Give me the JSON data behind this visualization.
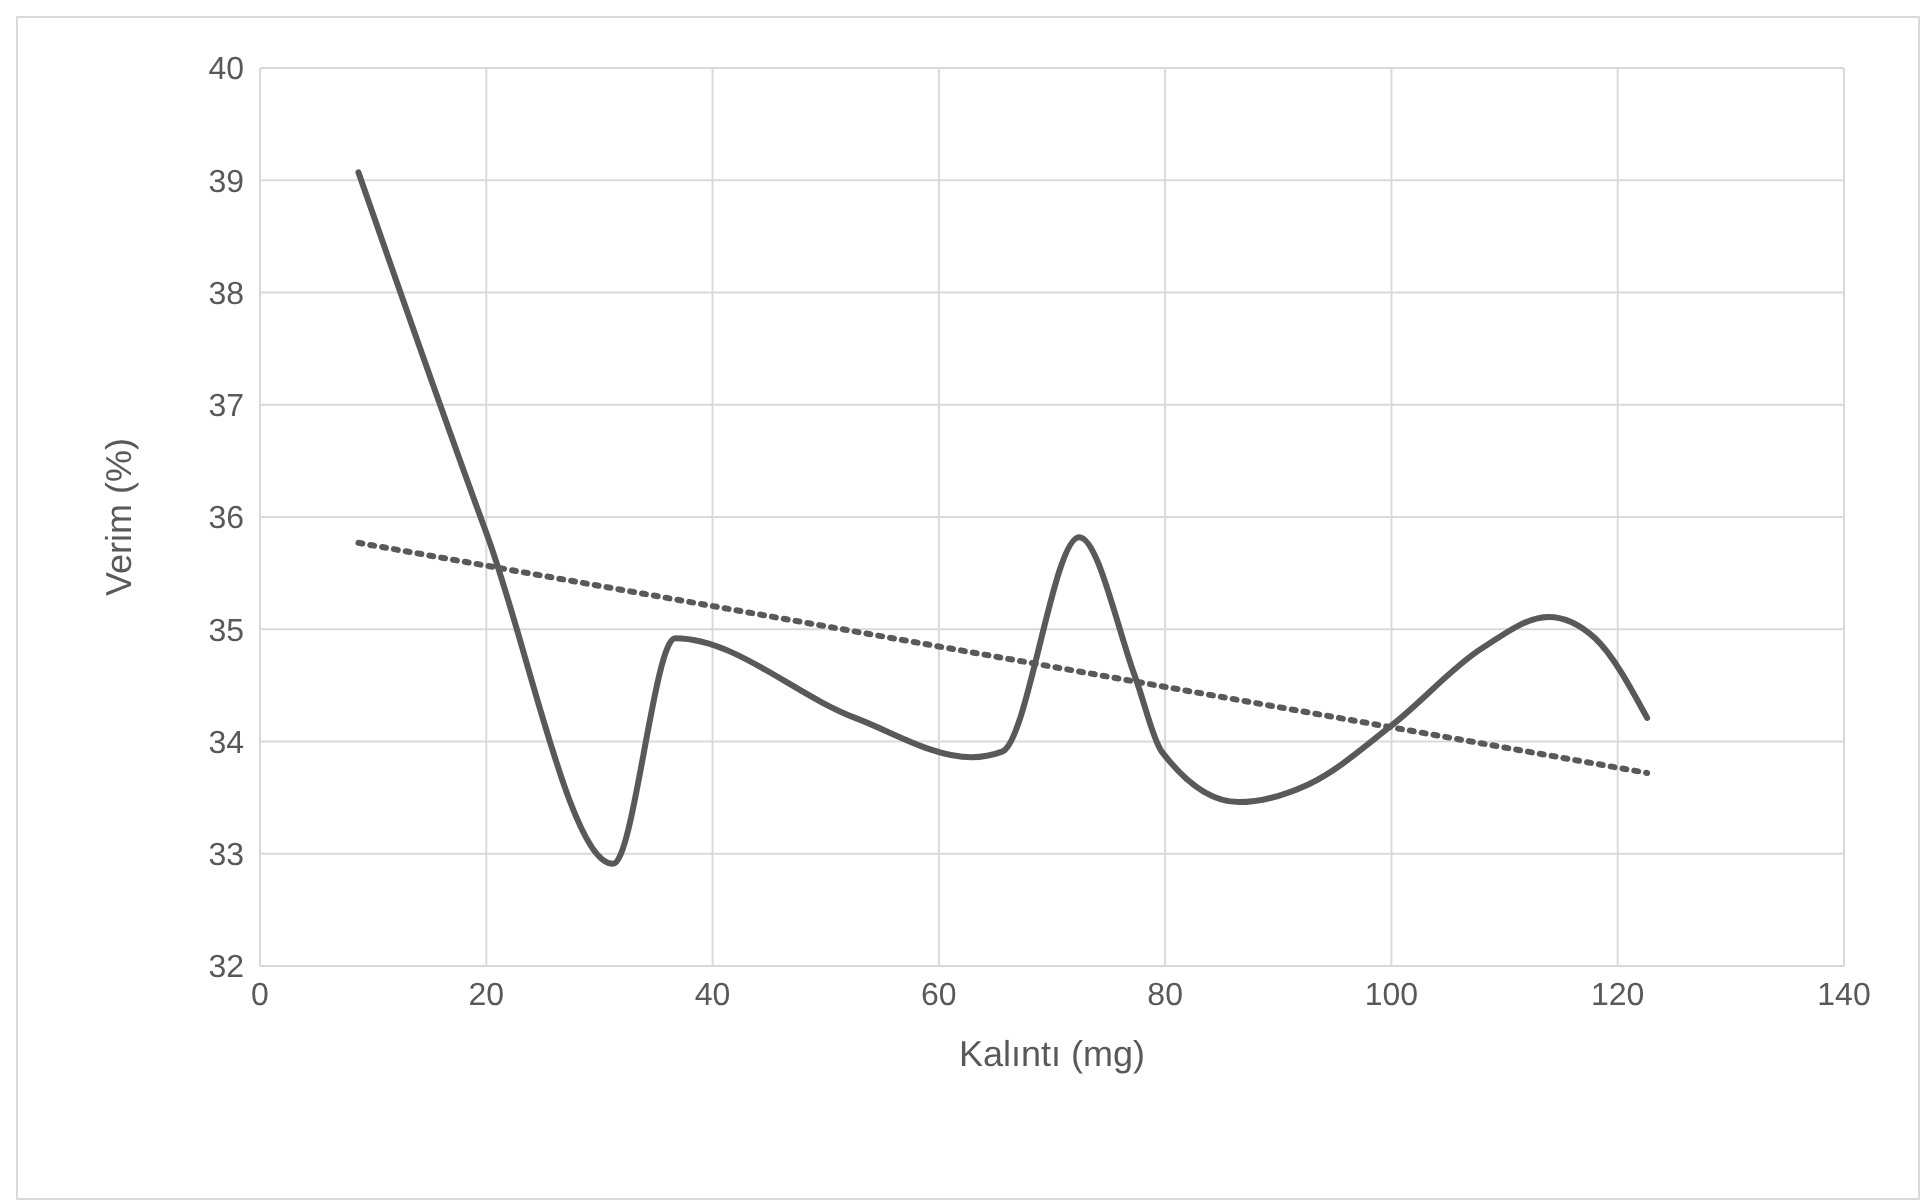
{
  "chart_data": {
    "type": "line",
    "xlabel": "Kalıntı (mg)",
    "ylabel": "Verim (%)",
    "xlim": [
      0,
      140
    ],
    "xticks": [
      0,
      20,
      40,
      60,
      80,
      100,
      120,
      140
    ],
    "ylim": [
      32,
      40
    ],
    "yticks": [
      32,
      33,
      34,
      35,
      36,
      37,
      38,
      39,
      40
    ],
    "grid": true,
    "legend": false,
    "marker": "none",
    "series": [
      {
        "color": "#595959",
        "line_style": "solid",
        "x": [
          8.7,
          20,
          31.2,
          36.7,
          52.6,
          62.9,
          65.6,
          72.4,
          77.4,
          79.7,
          86.5,
          92.7,
          100.1,
          108.0,
          113.9,
          118.0,
          122.6
        ],
        "values": [
          39.07,
          35.86,
          32.91,
          34.92,
          34.21,
          33.86,
          33.91,
          35.82,
          34.56,
          33.91,
          33.46,
          33.62,
          34.15,
          34.83,
          35.11,
          34.92,
          34.21
        ]
      },
      {
        "type": "line",
        "color": "#595959",
        "line_style": "dotted",
        "x": [
          8.7,
          122.6
        ],
        "values": [
          35.77,
          33.72
        ]
      }
    ]
  }
}
